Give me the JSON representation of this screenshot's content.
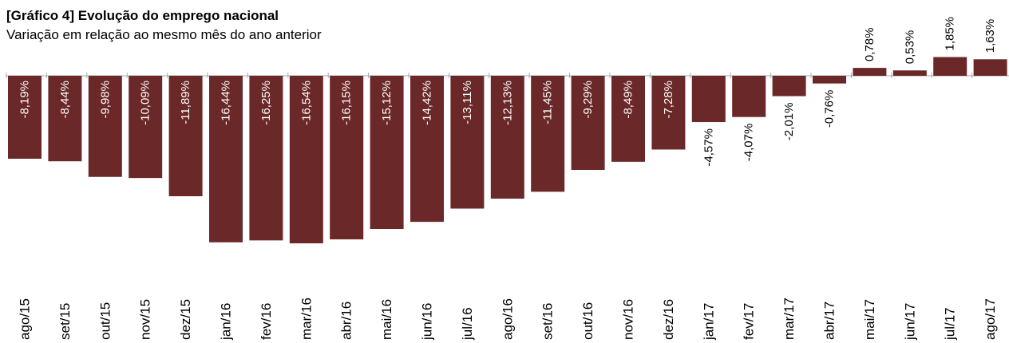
{
  "chart_data": {
    "type": "bar",
    "title": "[Gráfico 4] Evolução do emprego nacional",
    "subtitle": "Variação em relação ao mesmo mês do ano anterior",
    "categories": [
      "ago/15",
      "set/15",
      "out/15",
      "nov/15",
      "dez/15",
      "jan/16",
      "fev/16",
      "mar/16",
      "abr/16",
      "mai/16",
      "jun/16",
      "jul/16",
      "ago/16",
      "set/16",
      "out/16",
      "nov/16",
      "dez/16",
      "jan/17",
      "fev/17",
      "mar/17",
      "abr/17",
      "mai/17",
      "jun/17",
      "jul/17",
      "ago/17"
    ],
    "values": [
      -8.19,
      -8.44,
      -9.98,
      -10.09,
      -11.89,
      -16.44,
      -16.25,
      -16.54,
      -16.15,
      -15.12,
      -14.42,
      -13.11,
      -12.13,
      -11.45,
      -9.29,
      -8.49,
      -7.28,
      -4.57,
      -4.07,
      -2.01,
      -0.76,
      0.78,
      0.53,
      1.85,
      1.63
    ],
    "labels": [
      "-8,19%",
      "-8,44%",
      "-9,98%",
      "-10,09%",
      "-11,89%",
      "-16,44%",
      "-16,25%",
      "-16,54%",
      "-16,15%",
      "-15,12%",
      "-14,42%",
      "-13,11%",
      "-12,13%",
      "-11,45%",
      "-9,29%",
      "-8,49%",
      "-7,28%",
      "-4,57%",
      "-4,07%",
      "-2,01%",
      "-0,76%",
      "0,78%",
      "0,53%",
      "1,85%",
      "1,63%"
    ],
    "bar_color": "#6B2828",
    "grid": false,
    "legend": "none"
  }
}
